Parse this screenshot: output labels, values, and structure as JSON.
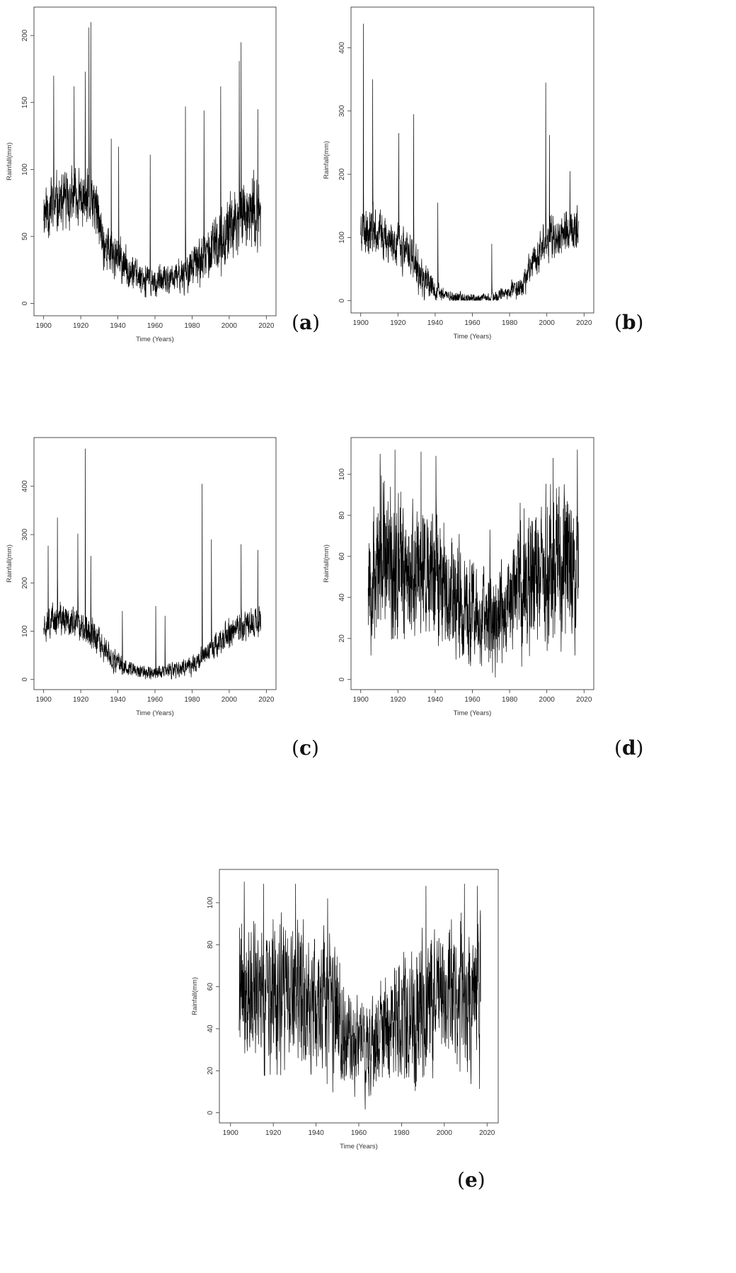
{
  "figure": {
    "panels": [
      {
        "letter_open": "(",
        "letter": "a",
        "letter_close": ")"
      },
      {
        "letter_open": "(",
        "letter": "b",
        "letter_close": ")"
      },
      {
        "letter_open": "(",
        "letter": "c",
        "letter_close": ")"
      },
      {
        "letter_open": "(",
        "letter": "d",
        "letter_close": ")"
      },
      {
        "letter_open": "(",
        "letter": "e",
        "letter_close": ")"
      }
    ]
  },
  "chart_data": [
    {
      "type": "line",
      "panel": "a",
      "xlabel": "Time (Years)",
      "ylabel": "Rainfall(mm)",
      "xlim": [
        1900,
        2017
      ],
      "ylim": [
        0,
        212
      ],
      "xticks": [
        1900,
        1920,
        1940,
        1960,
        1980,
        2000,
        2020
      ],
      "yticks": [
        0,
        50,
        100,
        150,
        200
      ],
      "grid": false,
      "color": "#000000",
      "level": [
        [
          1900,
          70
        ],
        [
          1910,
          75
        ],
        [
          1920,
          78
        ],
        [
          1928,
          72
        ],
        [
          1932,
          45
        ],
        [
          1940,
          32
        ],
        [
          1950,
          22
        ],
        [
          1960,
          15
        ],
        [
          1970,
          18
        ],
        [
          1980,
          27
        ],
        [
          1990,
          38
        ],
        [
          2000,
          55
        ],
        [
          2008,
          70
        ],
        [
          2017,
          65
        ]
      ],
      "amplitude": [
        [
          1900,
          32
        ],
        [
          1930,
          28
        ],
        [
          1950,
          16
        ],
        [
          1970,
          16
        ],
        [
          1990,
          28
        ],
        [
          2017,
          38
        ]
      ],
      "peaks": [
        [
          1905,
          170
        ],
        [
          1916,
          162
        ],
        [
          1922,
          173
        ],
        [
          1924,
          206
        ],
        [
          1925,
          210
        ],
        [
          1936,
          123
        ],
        [
          1940,
          117
        ],
        [
          1957,
          111
        ],
        [
          1976,
          147
        ],
        [
          1986,
          144
        ],
        [
          1995,
          162
        ],
        [
          2005,
          181
        ],
        [
          2006,
          195
        ],
        [
          2015,
          145
        ]
      ],
      "seed": 11
    },
    {
      "type": "line",
      "panel": "b",
      "xlabel": "Time (Years)",
      "ylabel": "Rainfall(mm)",
      "xlim": [
        1900,
        2017
      ],
      "ylim": [
        0,
        445
      ],
      "xticks": [
        1900,
        1920,
        1940,
        1960,
        1980,
        2000,
        2020
      ],
      "yticks": [
        0,
        100,
        200,
        300,
        400
      ],
      "grid": false,
      "color": "#000000",
      "level": [
        [
          1900,
          118
        ],
        [
          1910,
          108
        ],
        [
          1920,
          88
        ],
        [
          1928,
          68
        ],
        [
          1932,
          35
        ],
        [
          1940,
          15
        ],
        [
          1950,
          5
        ],
        [
          1960,
          3
        ],
        [
          1970,
          4
        ],
        [
          1980,
          12
        ],
        [
          1987,
          28
        ],
        [
          1992,
          60
        ],
        [
          2000,
          95
        ],
        [
          2008,
          108
        ],
        [
          2017,
          112
        ]
      ],
      "amplitude": [
        [
          1900,
          52
        ],
        [
          1930,
          45
        ],
        [
          1945,
          14
        ],
        [
          1970,
          10
        ],
        [
          1988,
          28
        ],
        [
          2000,
          48
        ],
        [
          2017,
          48
        ]
      ],
      "peaks": [
        [
          1901,
          438
        ],
        [
          1906,
          350
        ],
        [
          1920,
          265
        ],
        [
          1928,
          295
        ],
        [
          1941,
          155
        ],
        [
          1970,
          90
        ],
        [
          1999,
          345
        ],
        [
          2001,
          262
        ],
        [
          2012,
          205
        ]
      ],
      "seed": 23
    },
    {
      "type": "line",
      "panel": "c",
      "xlabel": "Time (Years)",
      "ylabel": "Rainfall(mm)",
      "xlim": [
        1900,
        2017
      ],
      "ylim": [
        0,
        480
      ],
      "xticks": [
        1900,
        1920,
        1940,
        1960,
        1980,
        2000,
        2020
      ],
      "yticks": [
        0,
        100,
        200,
        300,
        400
      ],
      "grid": false,
      "color": "#000000",
      "level": [
        [
          1900,
          122
        ],
        [
          1910,
          125
        ],
        [
          1920,
          112
        ],
        [
          1928,
          88
        ],
        [
          1934,
          52
        ],
        [
          1940,
          32
        ],
        [
          1950,
          18
        ],
        [
          1960,
          14
        ],
        [
          1970,
          18
        ],
        [
          1980,
          30
        ],
        [
          1988,
          55
        ],
        [
          2000,
          95
        ],
        [
          2008,
          110
        ],
        [
          2017,
          125
        ]
      ],
      "amplitude": [
        [
          1900,
          48
        ],
        [
          1930,
          42
        ],
        [
          1950,
          20
        ],
        [
          1970,
          22
        ],
        [
          1990,
          36
        ],
        [
          2017,
          48
        ]
      ],
      "peaks": [
        [
          1902,
          277
        ],
        [
          1907,
          335
        ],
        [
          1918,
          302
        ],
        [
          1922,
          478
        ],
        [
          1925,
          256
        ],
        [
          1942,
          142
        ],
        [
          1960,
          152
        ],
        [
          1965,
          132
        ],
        [
          1985,
          405
        ],
        [
          1990,
          290
        ],
        [
          2006,
          280
        ],
        [
          2015,
          268
        ]
      ],
      "seed": 37
    },
    {
      "type": "line",
      "panel": "d",
      "xlabel": "Time (Years)",
      "ylabel": "Rainfall(mm)",
      "xlim": [
        1900,
        2017
      ],
      "ylim": [
        0,
        113
      ],
      "xticks": [
        1900,
        1920,
        1940,
        1960,
        1980,
        2000,
        2020
      ],
      "yticks": [
        0,
        20,
        40,
        60,
        80,
        100
      ],
      "grid": false,
      "color": "#000000",
      "x_start": 1904,
      "level": [
        [
          1904,
          55
        ],
        [
          1920,
          55
        ],
        [
          1940,
          52
        ],
        [
          1950,
          45
        ],
        [
          1955,
          32
        ],
        [
          1965,
          28
        ],
        [
          1975,
          30
        ],
        [
          1985,
          45
        ],
        [
          2000,
          55
        ],
        [
          2017,
          55
        ]
      ],
      "amplitude": [
        [
          1904,
          50
        ],
        [
          1950,
          46
        ],
        [
          1955,
          36
        ],
        [
          1980,
          34
        ],
        [
          1988,
          48
        ],
        [
          2017,
          52
        ]
      ],
      "peaks": [
        [
          1910,
          110
        ],
        [
          1918,
          112
        ],
        [
          1932,
          111
        ],
        [
          1940,
          109
        ],
        [
          1969,
          73
        ],
        [
          2003,
          108
        ],
        [
          2016,
          112
        ]
      ],
      "seed": 53,
      "clip": [
        1,
        111
      ]
    },
    {
      "type": "line",
      "panel": "e",
      "xlabel": "Time (Years)",
      "ylabel": "Rainfall(mm)",
      "xlim": [
        1900,
        2017
      ],
      "ylim": [
        0,
        111
      ],
      "xticks": [
        1900,
        1920,
        1940,
        1960,
        1980,
        2000,
        2020
      ],
      "yticks": [
        0,
        20,
        40,
        60,
        80,
        100
      ],
      "grid": false,
      "color": "#000000",
      "x_start": 1904,
      "level": [
        [
          1904,
          55
        ],
        [
          1920,
          54
        ],
        [
          1940,
          52
        ],
        [
          1950,
          48
        ],
        [
          1955,
          34
        ],
        [
          1965,
          34
        ],
        [
          1975,
          38
        ],
        [
          1985,
          46
        ],
        [
          2000,
          55
        ],
        [
          2017,
          55
        ]
      ],
      "amplitude": [
        [
          1904,
          50
        ],
        [
          1950,
          46
        ],
        [
          1955,
          32
        ],
        [
          1970,
          32
        ],
        [
          1985,
          44
        ],
        [
          2017,
          50
        ]
      ],
      "peaks": [
        [
          1906,
          110
        ],
        [
          1915,
          109
        ],
        [
          1930,
          109
        ],
        [
          1945,
          102
        ],
        [
          1991,
          108
        ],
        [
          2009,
          109
        ],
        [
          2015,
          108
        ]
      ],
      "seed": 71,
      "clip": [
        1,
        110
      ]
    }
  ]
}
